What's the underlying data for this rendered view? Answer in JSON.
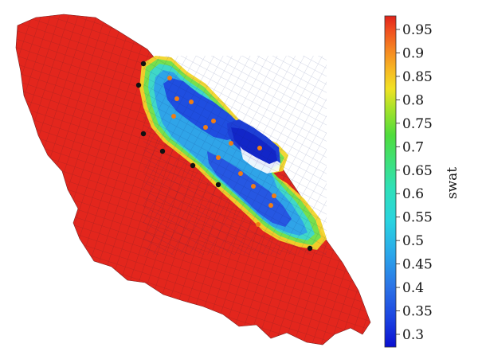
{
  "colorbar": {
    "label": "swat",
    "ticks": [
      "0.95",
      "0.9",
      "0.85",
      "0.8",
      "0.75",
      "0.7",
      "0.65",
      "0.6",
      "0.55",
      "0.5",
      "0.45",
      "0.4",
      "0.35",
      "0.3"
    ],
    "colors": [
      "#d7301f",
      "#f46d43",
      "#fdae61",
      "#fee08b",
      "#d9ef8b",
      "#a6d96a",
      "#66bd63",
      "#3ccf8f",
      "#35d0c5",
      "#2fbfe8",
      "#2b9be8",
      "#2a6fe0",
      "#1f45d8",
      "#0a14d0"
    ]
  },
  "legend_colors": {
    "background": "#ffffff",
    "grid_stroke": "#7a2222",
    "reservoir_red": "#e3261d"
  },
  "wells": {
    "producers_color": "#111111",
    "injectors_color": "#f07d14"
  }
}
